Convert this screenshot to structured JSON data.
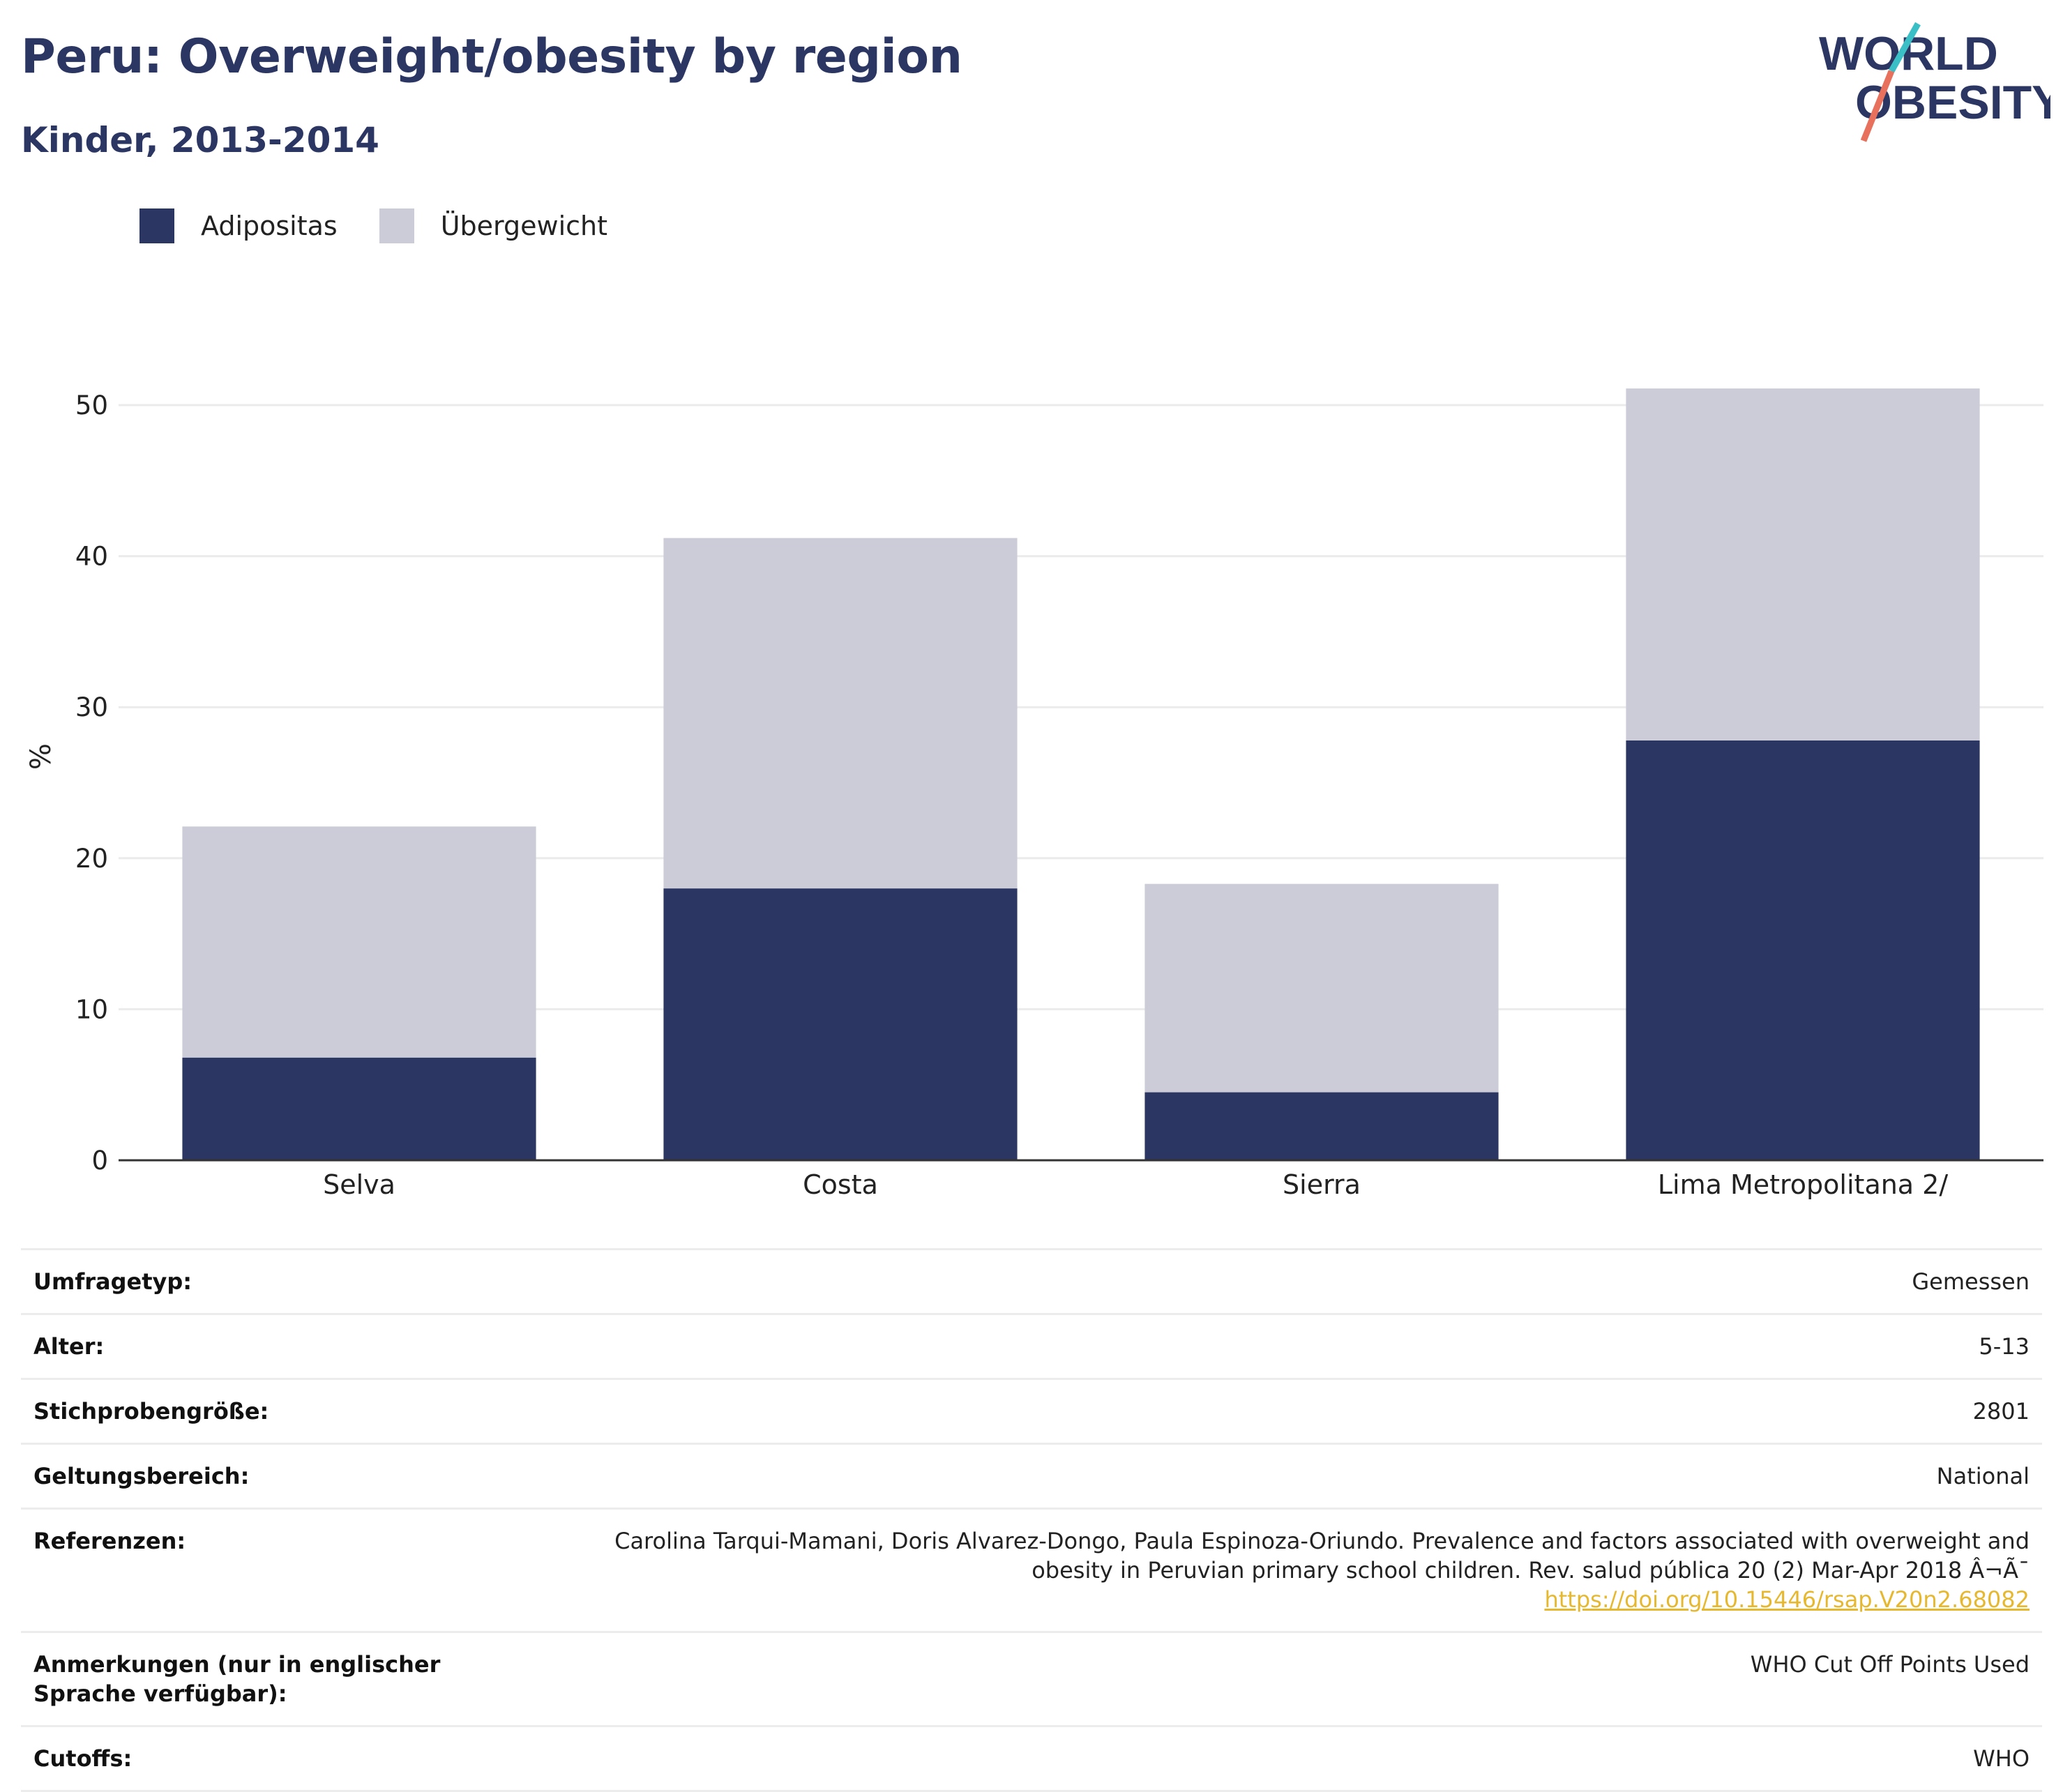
{
  "header": {
    "title": "Peru: Overweight/obesity by region",
    "subtitle": "Kinder, 2013-2014"
  },
  "logo": {
    "line1": "WORLD",
    "line2": "OBESITY"
  },
  "colors": {
    "obesity": "#2b3663",
    "overweight": "#cbccd8",
    "title": "#2b3663",
    "link": "#e6b830",
    "logo_slash_top": "#3bbfc6",
    "logo_slash_bottom": "#e8715e"
  },
  "legend": {
    "items": [
      {
        "label": "Adipositas",
        "color": "#2b3663"
      },
      {
        "label": "Übergewicht",
        "color": "#cbccd8"
      }
    ]
  },
  "chart_data": {
    "type": "bar",
    "stacked": true,
    "categories": [
      "Selva",
      "Costa",
      "Sierra",
      "Lima Metropolitana 2/"
    ],
    "series": [
      {
        "name": "Adipositas",
        "color": "#2b3663",
        "values": [
          6.8,
          18.0,
          4.5,
          27.8
        ]
      },
      {
        "name": "Übergewicht",
        "color": "#cbccd8",
        "values": [
          15.3,
          23.2,
          13.8,
          23.3
        ]
      }
    ],
    "ylabel": "%",
    "xlabel": "",
    "ylim": [
      0,
      55
    ],
    "yticks": [
      0,
      10,
      20,
      30,
      40,
      50
    ],
    "grid": true,
    "legend_position": "top-left"
  },
  "info": {
    "rows": [
      {
        "label": "Umfragetyp:",
        "value": "Gemessen"
      },
      {
        "label": "Alter:",
        "value": "5-13"
      },
      {
        "label": "Stichprobengröße:",
        "value": "2801"
      },
      {
        "label": "Geltungsbereich:",
        "value": "National"
      },
      {
        "label": "Referenzen:",
        "value": "Carolina Tarqui-Mamani, Doris Alvarez-Dongo, Paula Espinoza-Oriundo. Prevalence and factors associated with overweight and obesity in Peruvian primary school children. Rev. salud pública 20 (2) Mar-Apr 2018 Â¬Ã¯ ",
        "link": "https://doi.org/10.15446/rsap.V20n2.68082"
      },
      {
        "label": "Anmerkungen (nur in englischer Sprache verfügbar):",
        "value": "WHO Cut Off Points Used"
      },
      {
        "label": "Cutoffs:",
        "value": "WHO"
      }
    ]
  }
}
